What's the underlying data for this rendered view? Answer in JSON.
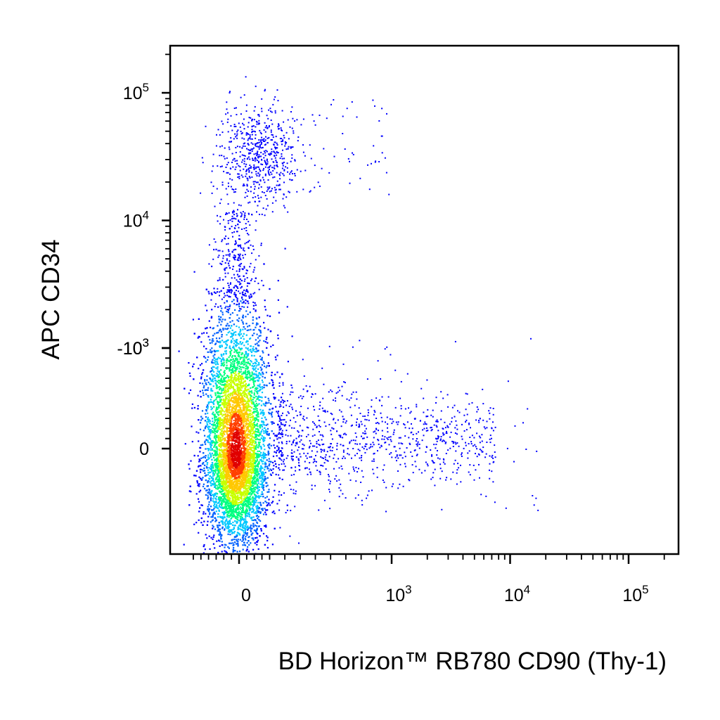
{
  "chart_data": {
    "type": "scatter",
    "subtype": "flow-cytometry density dot plot (biexponential axes)",
    "title": "",
    "xlabel": "BD Horizon™ RB780 CD90 (Thy-1)",
    "ylabel": "APC CD34",
    "x_scale": "biexponential",
    "y_scale": "biexponential",
    "xlim": [
      -1000,
      250000
    ],
    "ylim": [
      -1000,
      250000
    ],
    "grid": false,
    "legend": "none",
    "x_ticks": [
      {
        "value": 0,
        "label": "0"
      },
      {
        "value": 1000,
        "label": "10",
        "exp": "3"
      },
      {
        "value": 10000,
        "label": "10",
        "exp": "4"
      },
      {
        "value": 100000,
        "label": "10",
        "exp": "5"
      }
    ],
    "y_ticks": [
      {
        "value": -1000,
        "label": "-10",
        "exp": "3"
      },
      {
        "value": 0,
        "label": "0"
      },
      {
        "value": 1000,
        "label": "10",
        "exp": "3"
      },
      {
        "value": 10000,
        "label": "10",
        "exp": "4"
      },
      {
        "value": 100000,
        "label": "10",
        "exp": "5"
      }
    ],
    "colors": {
      "sparse": "#0000ff",
      "density_scale": [
        "#0000ff",
        "#0060ff",
        "#00c8ff",
        "#00ff80",
        "#c8ff00",
        "#ffc800",
        "#ff4000",
        "#e00000"
      ]
    },
    "populations": [
      {
        "name": "",
        "x_center": 0,
        "y_center": 0,
        "x_spread": 140,
        "y_spread": 550,
        "events": "dense"
      },
      {
        "name": "",
        "x_range": [
          0,
          2000
        ],
        "y_range": [
          10000,
          120000
        ],
        "events": "sparse"
      },
      {
        "name": "",
        "x_range": [
          100,
          20000
        ],
        "y_range": [
          -800,
          1000
        ],
        "events": "sparse"
      }
    ]
  }
}
